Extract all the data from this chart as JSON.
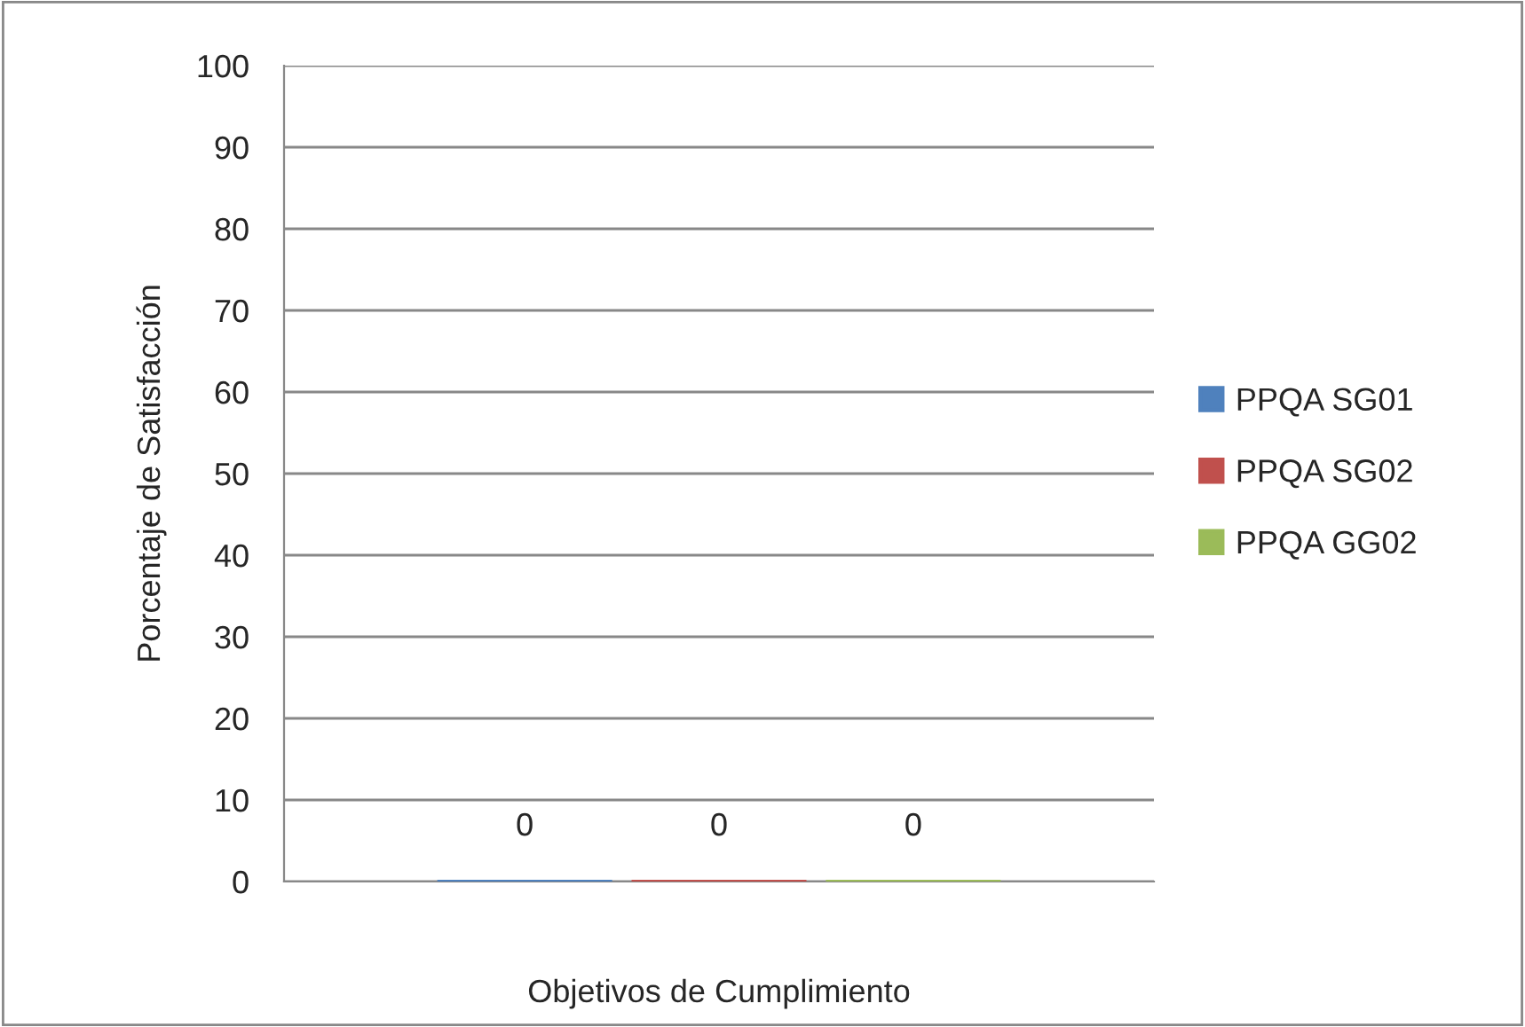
{
  "chart_data": {
    "type": "bar",
    "xlabel": "Objetivos de Cumplimiento",
    "ylabel": "Porcentaje de Satisfacción",
    "categories": [
      null
    ],
    "series": [
      {
        "name": "PPQA SG01",
        "color": "#4f81bd",
        "values": [
          0
        ]
      },
      {
        "name": "PPQA SG02",
        "color": "#c0504d",
        "values": [
          0
        ]
      },
      {
        "name": "PPQA GG02",
        "color": "#9bbb59",
        "values": [
          0
        ]
      }
    ],
    "ylim": [
      0,
      100
    ],
    "yticks": [
      0,
      10,
      20,
      30,
      40,
      50,
      60,
      70,
      80,
      90,
      100
    ],
    "grid": "y",
    "legend": "right",
    "data_labels": true
  }
}
